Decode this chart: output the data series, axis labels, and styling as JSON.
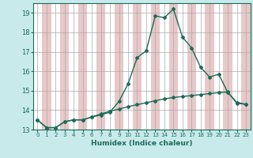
{
  "xlabel": "Humidex (Indice chaleur)",
  "bg_color": "#c8eaea",
  "line_color": "#1a6b5a",
  "grid_color": "#ffffff",
  "band_color": "#e8c8c8",
  "xlim": [
    -0.5,
    23.5
  ],
  "ylim": [
    13,
    19.5
  ],
  "yticks": [
    13,
    14,
    15,
    16,
    17,
    18,
    19
  ],
  "xticks": [
    0,
    1,
    2,
    3,
    4,
    5,
    6,
    7,
    8,
    9,
    10,
    11,
    12,
    13,
    14,
    15,
    16,
    17,
    18,
    19,
    20,
    21,
    22,
    23
  ],
  "line1_x": [
    0,
    1,
    2,
    3,
    4,
    5,
    6,
    7,
    8,
    9,
    10,
    11,
    12,
    13,
    14,
    15,
    16,
    17,
    18,
    19,
    20,
    21,
    22,
    23
  ],
  "line1_y": [
    13.5,
    13.1,
    13.1,
    13.4,
    13.5,
    13.5,
    13.65,
    13.75,
    13.9,
    14.45,
    15.35,
    16.7,
    17.05,
    18.85,
    18.75,
    19.2,
    17.75,
    17.2,
    16.2,
    15.7,
    15.85,
    14.9,
    14.4,
    14.3
  ],
  "line2_x": [
    0,
    1,
    2,
    3,
    4,
    5,
    6,
    7,
    8,
    9,
    10,
    11,
    12,
    13,
    14,
    15,
    16,
    17,
    18,
    19,
    20,
    21,
    22,
    23
  ],
  "line2_y": [
    13.5,
    13.1,
    13.1,
    13.4,
    13.5,
    13.5,
    13.65,
    13.8,
    13.95,
    14.05,
    14.18,
    14.28,
    14.38,
    14.48,
    14.58,
    14.65,
    14.7,
    14.75,
    14.8,
    14.85,
    14.9,
    14.93,
    14.35,
    14.3
  ]
}
